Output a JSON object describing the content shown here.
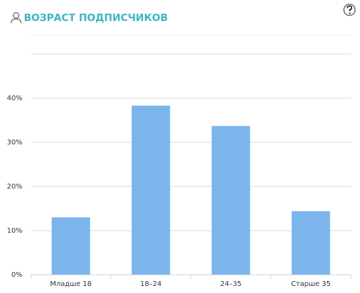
{
  "chart_data": {
    "type": "bar",
    "title": "ВОЗРАСТ ПОДПИСЧИКОВ",
    "categories": [
      "Младше 18",
      "18–24",
      "24–35",
      "Старше 35"
    ],
    "values": [
      13.0,
      38.3,
      33.7,
      14.4
    ],
    "color": "#7cb5ec",
    "ylim": [
      0,
      50
    ],
    "yticks": [
      {
        "value": 0,
        "label": "0%"
      },
      {
        "value": 10,
        "label": "10%"
      },
      {
        "value": 20,
        "label": "20%"
      },
      {
        "value": 30,
        "label": "30%"
      },
      {
        "value": 40,
        "label": "40%"
      }
    ],
    "grid": true
  }
}
